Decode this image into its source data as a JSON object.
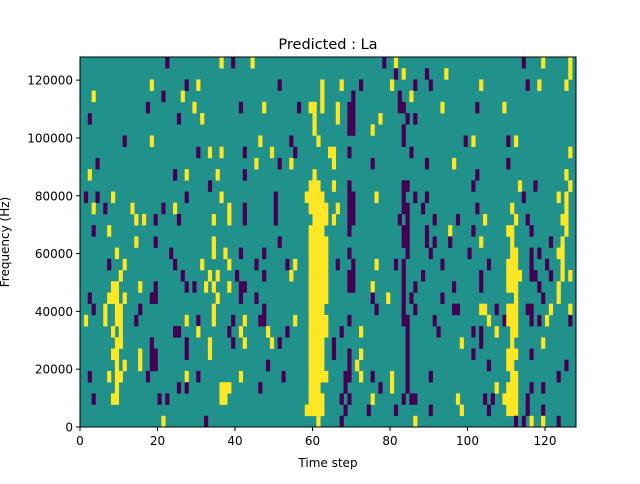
{
  "chart_data": {
    "type": "heatmap",
    "title": "Predicted : La",
    "xlabel": "Time step",
    "ylabel": "Frequency (Hz)",
    "xlim": [
      0,
      128
    ],
    "ylim": [
      0,
      128000
    ],
    "xticks": [
      0,
      20,
      40,
      60,
      80,
      100,
      120
    ],
    "yticks": [
      0,
      20000,
      40000,
      60000,
      80000,
      100000,
      120000
    ],
    "n_cols": 128,
    "n_rows": 33,
    "grid": false,
    "legend": "none",
    "colors": {
      "zero": "#21918c",
      "positive": "#fde725",
      "negative": "#440154"
    },
    "encoding": "rows listed from highest frequency to lowest; y = value +1 (positive), p = value -1 (negative), unlisted cells = 0",
    "rows": [
      [
        "p22",
        "y36",
        "p39",
        "y44",
        "p78",
        "y81",
        "p114",
        "y119",
        "y126"
      ],
      [
        "p81",
        "y83",
        "p89",
        "y94",
        "y126"
      ],
      [
        "y18",
        "p27",
        "y30",
        "p51",
        "y62",
        "y67",
        "p72",
        "y80",
        "p86",
        "p90",
        "y103",
        "p115",
        "y118",
        "y125"
      ],
      [
        "y3",
        "p21",
        "y26",
        "y62",
        "p70",
        "p82",
        "y85"
      ],
      [
        "p17",
        "y29",
        "p41",
        "y47",
        "p56",
        "y59-60",
        "y62",
        "y66",
        "p69-70",
        "p82-83",
        "y93",
        "p102",
        "y109"
      ],
      [
        "p2",
        "p25",
        "y31",
        "y60",
        "y66",
        "p69-70",
        "y77",
        "p84",
        "p86"
      ],
      [
        "y60",
        "p69-70",
        "y75",
        "p83"
      ],
      [
        "p11",
        "y18",
        "y46",
        "p54",
        "y61",
        "p83",
        "p99",
        "y101",
        "p110",
        "y112"
      ],
      [
        "p30",
        "y33",
        "y36",
        "p42",
        "y49",
        "p55",
        "y64-65",
        "p69",
        "p85",
        "y126"
      ],
      [
        "p4",
        "y45",
        "p51",
        "y54",
        "y65",
        "p75",
        "p89",
        "y96",
        "p110"
      ],
      [
        "y2",
        "p24",
        "y27",
        "y35",
        "p42",
        "y60",
        "p102",
        "y125"
      ],
      [
        "p33",
        "y59-61",
        "y65",
        "p69",
        "p83-84",
        "p101",
        "y113",
        "p117",
        "y126"
      ],
      [
        "p1",
        "p4",
        "y8",
        "p27",
        "y36",
        "p50",
        "y58-62",
        "p69-70",
        "y76",
        "p83",
        "p86",
        "p89",
        "p114",
        "y123",
        "y125"
      ],
      [
        "y3",
        "p6",
        "y13",
        "p21",
        "y24",
        "y38",
        "p42",
        "p50",
        "y59-63",
        "y66",
        "p69-70",
        "p83-84",
        "p88",
        "p102",
        "y111",
        "y125"
      ],
      [
        "y14",
        "y16",
        "p19",
        "p25",
        "y34",
        "y38",
        "p42",
        "p50",
        "y60-63",
        "y65",
        "p69-70",
        "p82",
        "p84",
        "p91",
        "p97",
        "y104",
        "y112",
        "p115",
        "y124-125"
      ],
      [
        "p3",
        "y7",
        "y59-62",
        "p69",
        "p83-84",
        "p89",
        "y95",
        "p101",
        "y110-111",
        "p116",
        "y125"
      ],
      [
        "y14",
        "p19",
        "y34",
        "p51",
        "y59-63",
        "p83-84",
        "p89",
        "p91",
        "p95",
        "y103",
        "y111",
        "p121",
        "y124"
      ],
      [
        "y9",
        "p23",
        "y34",
        "y37",
        "p41",
        "p47",
        "y59-63",
        "p69",
        "p84",
        "p90",
        "p100",
        "y111-112",
        "p116",
        "p118",
        "y123-124"
      ],
      [
        "p7",
        "y11",
        "p24",
        "y31",
        "y38",
        "p45",
        "p53",
        "y55",
        "y59-63",
        "p66",
        "p70",
        "y76",
        "p81",
        "p83",
        "p93",
        "p105",
        "y110-112",
        "p116",
        "p120",
        "y124"
      ],
      [
        "y10",
        "p26",
        "y33",
        "y35",
        "p40",
        "p47",
        "y54",
        "y59-63",
        "p69-70",
        "p83",
        "p88",
        "p103",
        "y110-113",
        "p116-117",
        "p121",
        "y124",
        "y126"
      ],
      [
        "y8-9",
        "y15",
        "p19",
        "p27",
        "p29",
        "y32",
        "y34",
        "y38",
        "p41-42",
        "y59-63",
        "p69-70",
        "y75",
        "p83",
        "p86",
        "p96",
        "p103",
        "y110-112",
        "p118",
        "y123"
      ],
      [
        "p2",
        "y7-9",
        "y11",
        "p18-19",
        "y35",
        "p41",
        "p45",
        "y59-63",
        "p75",
        "y79",
        "p83",
        "p85",
        "p93",
        "y112",
        "p119",
        "y123"
      ],
      [
        "p3",
        "y6",
        "y9-10",
        "p15",
        "y34",
        "p47",
        "y59-62",
        "p76",
        "p83",
        "p86",
        "p96-97",
        "y103-104",
        "p107",
        "y110-112",
        "p115-116",
        "y121",
        "y126"
      ],
      [
        "y1",
        "y6",
        "y9-10",
        "p14",
        "y27",
        "p30",
        "y34",
        "p39",
        "y42",
        "p46-47",
        "y55",
        "y59-63",
        "p69",
        "p83-84",
        "p91",
        "y105",
        "p109",
        "y110-112",
        "p116",
        "p118",
        "y120",
        "p126"
      ],
      [
        "y8",
        "y10",
        "p24-25",
        "y30",
        "p38",
        "y41",
        "y48",
        "p53",
        "y59-63",
        "p67",
        "y72",
        "p84",
        "p92",
        "p101",
        "p103",
        "y107",
        "y111-112"
      ],
      [
        "y9-10",
        "p18",
        "p27",
        "y33",
        "p39",
        "y42",
        "y49",
        "p51",
        "y59-62",
        "p65",
        "p84",
        "y98",
        "p103",
        "y111",
        "y119"
      ],
      [
        "y8-9",
        "y15",
        "p18-19",
        "p27",
        "y33",
        "y59-62",
        "p65",
        "p69",
        "y72",
        "p84",
        "p101",
        "y110-112",
        "p116"
      ],
      [
        "y9",
        "y11",
        "y15",
        "p18-19",
        "p48",
        "y59-62",
        "p69",
        "y71",
        "p84",
        "p105",
        "y110-111",
        "p125"
      ],
      [
        "p2",
        "y7",
        "y9-10",
        "p17",
        "y27",
        "p30",
        "y41",
        "p52",
        "y59-63",
        "p68-69",
        "y72",
        "p75",
        "y80",
        "p84",
        "p90",
        "y111-112",
        "p123"
      ],
      [
        "y9",
        "p25",
        "p27",
        "y36-38",
        "p46",
        "y59-61",
        "p68",
        "p77",
        "y80",
        "p84",
        "y107",
        "y110-112",
        "p116",
        "p119"
      ],
      [
        "p3",
        "y8-9",
        "p20",
        "p22",
        "y36-37",
        "y59-62",
        "p67",
        "p69",
        "y75",
        "p83",
        "p85-86",
        "y97",
        "p104",
        "p106",
        "y109-112",
        "p115"
      ],
      [
        "y58-62",
        "p68",
        "p74",
        "p81",
        "p90",
        "y98",
        "p105",
        "y110-112",
        "p115",
        "p119"
      ],
      [
        "y21",
        "p32",
        "y61",
        "p67",
        "y86",
        "p112",
        "p114",
        "y116",
        "y119",
        "p123"
      ]
    ]
  }
}
